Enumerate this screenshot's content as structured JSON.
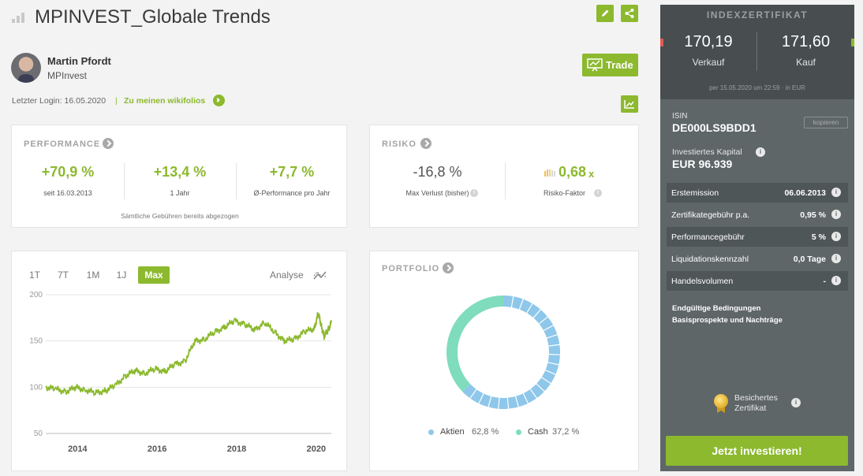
{
  "header": {
    "title": "MPINVEST_Globale Trends",
    "author_name": "Martin Pfordt",
    "author_company": "MPInvest",
    "last_login": "Letzter Login: 16.05.2020",
    "separator": "|",
    "wikifolios_link": "Zu meinen wikifolios",
    "trade_label": "Trade"
  },
  "performance": {
    "title": "PERFORMANCE",
    "items": [
      {
        "value": "+70,9 %",
        "label": "seit 16.03.2013"
      },
      {
        "value": "+13,4 %",
        "label": "1 Jahr"
      },
      {
        "value": "+7,7 %",
        "label": "Ø-Performance pro Jahr"
      }
    ],
    "footnote": "Sämtliche Gebühren bereits abgezogen"
  },
  "risk": {
    "title": "RISIKO",
    "max_loss_value": "-16,8 %",
    "max_loss_label": "Max Verlust (bisher)",
    "factor_value": "0,68",
    "factor_suffix": "x",
    "factor_label": "Risiko-Faktor"
  },
  "chart_tabs": {
    "tabs": [
      "1T",
      "7T",
      "1M",
      "1J",
      "Max"
    ],
    "active": "Max",
    "analyse_label": "Analyse"
  },
  "chart_data": {
    "type": "line",
    "title": "",
    "xlabel": "",
    "ylabel": "",
    "x_ticks": [
      "2014",
      "2016",
      "2018",
      "2020"
    ],
    "y_ticks": [
      200,
      150,
      100,
      50
    ],
    "ylim": [
      50,
      200
    ],
    "xlim": [
      2013.2,
      2020.38
    ],
    "series": [
      {
        "name": "MPINVEST_Globale Trends",
        "color": "#8cb92e",
        "x": [
          2013.2,
          2013.45,
          2013.7,
          2013.95,
          2014.2,
          2014.45,
          2014.7,
          2014.95,
          2015.2,
          2015.45,
          2015.7,
          2015.95,
          2016.2,
          2016.45,
          2016.7,
          2016.95,
          2017.2,
          2017.45,
          2017.7,
          2017.95,
          2018.2,
          2018.45,
          2018.7,
          2018.95,
          2019.2,
          2019.45,
          2019.7,
          2019.95,
          2020.05,
          2020.12,
          2020.2,
          2020.3,
          2020.38
        ],
        "y": [
          100,
          98,
          95,
          100,
          97,
          94,
          96,
          102,
          112,
          118,
          115,
          120,
          117,
          125,
          128,
          150,
          152,
          160,
          165,
          172,
          168,
          162,
          170,
          160,
          150,
          152,
          160,
          163,
          180,
          168,
          155,
          162,
          170
        ]
      }
    ]
  },
  "portfolio": {
    "title": "PORTFOLIO",
    "chart_data": {
      "type": "pie",
      "segments": [
        {
          "label": "Aktien",
          "value": 62.8,
          "display": "62,8 %",
          "color": "#8ec7ea"
        },
        {
          "label": "Cash",
          "value": 37.2,
          "display": "37,2 %",
          "color": "#7fdcbd"
        }
      ]
    }
  },
  "sidebar": {
    "title": "INDEXZERTIFIKAT",
    "sell_value": "170,19",
    "sell_label": "Verkauf",
    "buy_value": "171,60",
    "buy_label": "Kauf",
    "price_note": "per 15.05.2020 um 22:59 · in EUR",
    "isin_label": "ISIN",
    "isin_value": "DE000LS9BDD1",
    "copy_label": "kopieren",
    "capital_label": "Investiertes Kapital",
    "capital_value": "EUR 96.939",
    "rows": [
      {
        "label": "Erstemission",
        "value": "06.06.2013"
      },
      {
        "label": "Zertifikategebühr p.a.",
        "value": "0,95 %"
      },
      {
        "label": "Performancegebühr",
        "value": "5 %"
      },
      {
        "label": "Liquidationskennzahl",
        "value": "0,0 Tage"
      },
      {
        "label": "Handelsvolumen",
        "value": "-"
      }
    ],
    "link1": "Endgültige Bedingungen",
    "link2": "Basisprospekte und Nachträge",
    "secured_line1": "Besichertes",
    "secured_line2": "Zertifikat",
    "invest_label": "Jetzt investieren!"
  },
  "colors": {
    "accent": "#8cb92e",
    "sidebar_bg": "#5e6668",
    "sidebar_top": "#484e50",
    "aktien": "#8ec7ea",
    "cash": "#7fdcbd"
  }
}
